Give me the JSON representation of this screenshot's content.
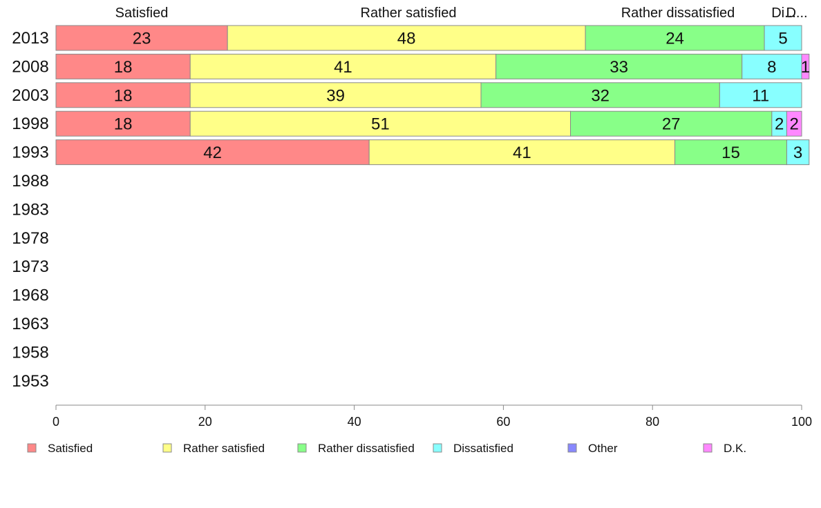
{
  "chart_data": {
    "type": "bar",
    "orientation": "horizontal",
    "stacked": true,
    "categories": [
      "2013",
      "2008",
      "2003",
      "1998",
      "1993",
      "1988",
      "1983",
      "1978",
      "1973",
      "1968",
      "1963",
      "1958",
      "1953"
    ],
    "series": [
      {
        "name": "Satisfied",
        "color": "#ff8888",
        "values": [
          23,
          18,
          18,
          18,
          42,
          null,
          null,
          null,
          null,
          null,
          null,
          null,
          null
        ]
      },
      {
        "name": "Rather satisfied",
        "color": "#ffff88",
        "values": [
          48,
          41,
          39,
          51,
          41,
          null,
          null,
          null,
          null,
          null,
          null,
          null,
          null
        ]
      },
      {
        "name": "Rather dissatisfied",
        "color": "#88ff88",
        "values": [
          24,
          33,
          32,
          27,
          15,
          null,
          null,
          null,
          null,
          null,
          null,
          null,
          null
        ]
      },
      {
        "name": "Dissatisfied",
        "color": "#88ffff",
        "values": [
          5,
          8,
          11,
          2,
          3,
          null,
          null,
          null,
          null,
          null,
          null,
          null,
          null
        ]
      },
      {
        "name": "Other",
        "color": "#8888ff",
        "values": [
          0,
          0,
          0,
          0,
          0,
          null,
          null,
          null,
          null,
          null,
          null,
          null,
          null
        ]
      },
      {
        "name": "D.K.",
        "color": "#ff88ff",
        "values": [
          0,
          1,
          0,
          2,
          0,
          null,
          null,
          null,
          null,
          null,
          null,
          null,
          null
        ]
      }
    ],
    "top_labels": [
      "Satisfied",
      "Rather satisfied",
      "Rather dissatisfied",
      "Di...",
      "D..."
    ],
    "xlim": [
      0,
      100
    ],
    "xticks": [
      "0",
      "20",
      "40",
      "60",
      "80",
      "100"
    ],
    "grid": false,
    "legend_position": "bottom"
  }
}
